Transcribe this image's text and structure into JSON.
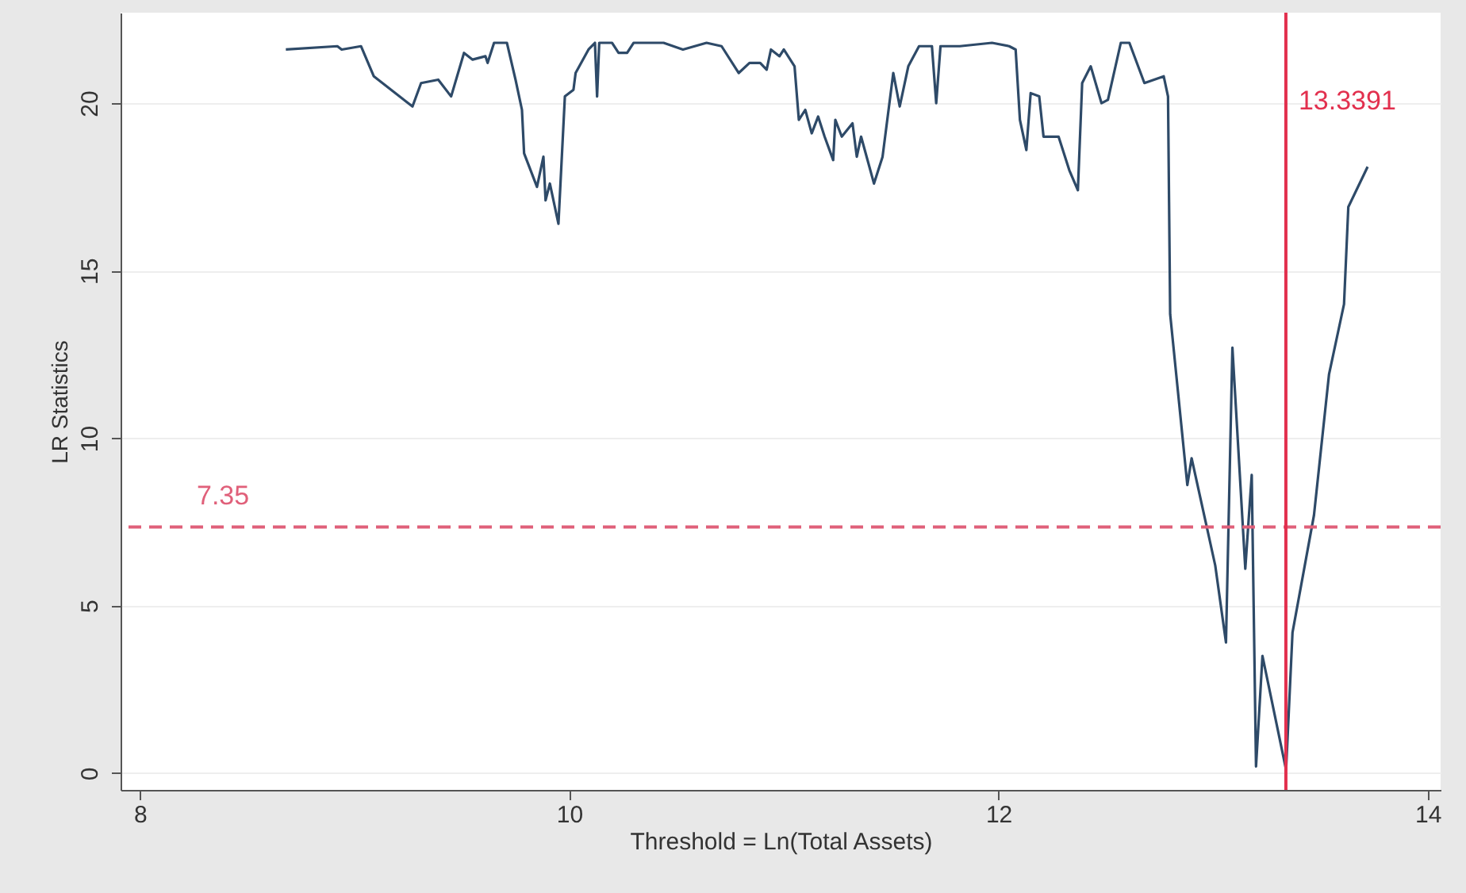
{
  "chart_data": {
    "type": "line",
    "xlabel": "Threshold = Ln(Total Assets)",
    "ylabel": "LR Statistics",
    "xlim": [
      7.91,
      14.06
    ],
    "ylim": [
      -0.5,
      22.7
    ],
    "xticks": [
      8,
      10,
      12,
      14
    ],
    "yticks": [
      0,
      5,
      10,
      15,
      20
    ],
    "grid": "y",
    "x": [
      8.68,
      8.92,
      8.94,
      9.03,
      9.09,
      9.27,
      9.31,
      9.39,
      9.45,
      9.51,
      9.55,
      9.61,
      9.62,
      9.65,
      9.71,
      9.75,
      9.78,
      9.79,
      9.85,
      9.88,
      9.89,
      9.91,
      9.95,
      9.98,
      10.02,
      10.03,
      10.09,
      10.12,
      10.13,
      10.14,
      10.2,
      10.23,
      10.27,
      10.3,
      10.44,
      10.53,
      10.64,
      10.71,
      10.79,
      10.84,
      10.89,
      10.92,
      10.94,
      10.98,
      11.0,
      11.05,
      11.07,
      11.1,
      11.13,
      11.16,
      11.19,
      11.23,
      11.24,
      11.27,
      11.32,
      11.34,
      11.36,
      11.42,
      11.46,
      11.51,
      11.54,
      11.58,
      11.63,
      11.69,
      11.71,
      11.73,
      11.82,
      11.97,
      12.05,
      12.08,
      12.1,
      12.13,
      12.15,
      12.19,
      12.21,
      12.28,
      12.33,
      12.37,
      12.39,
      12.43,
      12.48,
      12.51,
      12.57,
      12.61,
      12.68,
      12.77,
      12.79,
      12.8,
      12.88,
      12.9,
      13.01,
      13.06,
      13.09,
      13.15,
      13.18,
      13.2,
      13.23,
      13.34,
      13.37,
      13.47,
      13.54,
      13.61,
      13.63,
      13.72
    ],
    "series": [
      {
        "color": "#2e4a68",
        "values": [
          21.6,
          21.7,
          21.6,
          21.7,
          20.8,
          19.9,
          20.6,
          20.7,
          20.2,
          21.5,
          21.3,
          21.4,
          21.2,
          21.8,
          21.8,
          20.7,
          19.8,
          18.5,
          17.5,
          18.4,
          17.1,
          17.6,
          16.4,
          20.2,
          20.4,
          20.9,
          21.6,
          21.8,
          20.2,
          21.8,
          21.8,
          21.5,
          21.5,
          21.8,
          21.8,
          21.6,
          21.8,
          21.7,
          20.9,
          21.2,
          21.2,
          21.0,
          21.6,
          21.4,
          21.6,
          21.1,
          19.5,
          19.8,
          19.1,
          19.6,
          19.0,
          18.3,
          19.5,
          19.0,
          19.4,
          18.4,
          19.0,
          17.6,
          18.4,
          20.9,
          19.9,
          21.1,
          21.7,
          21.7,
          20.0,
          21.7,
          21.7,
          21.8,
          21.7,
          21.6,
          19.5,
          18.6,
          20.3,
          20.2,
          19.0,
          19.0,
          18.0,
          17.4,
          20.6,
          21.1,
          20.0,
          20.1,
          21.8,
          21.8,
          20.6,
          20.8,
          20.2,
          13.7,
          8.6,
          9.4,
          6.2,
          3.9,
          12.7,
          6.1,
          8.9,
          0.2,
          3.5,
          0.1,
          4.2,
          7.7,
          11.9,
          14.0,
          16.9,
          18.1
        ]
      }
    ],
    "ref_lines": [
      {
        "axis": "y",
        "value": 7.35,
        "label": "7.35",
        "color": "#e0607a",
        "line_style": "dashed"
      },
      {
        "axis": "x",
        "value": 13.3391,
        "label": "13.3391",
        "color": "#e2304e",
        "line_style": "solid"
      }
    ]
  }
}
